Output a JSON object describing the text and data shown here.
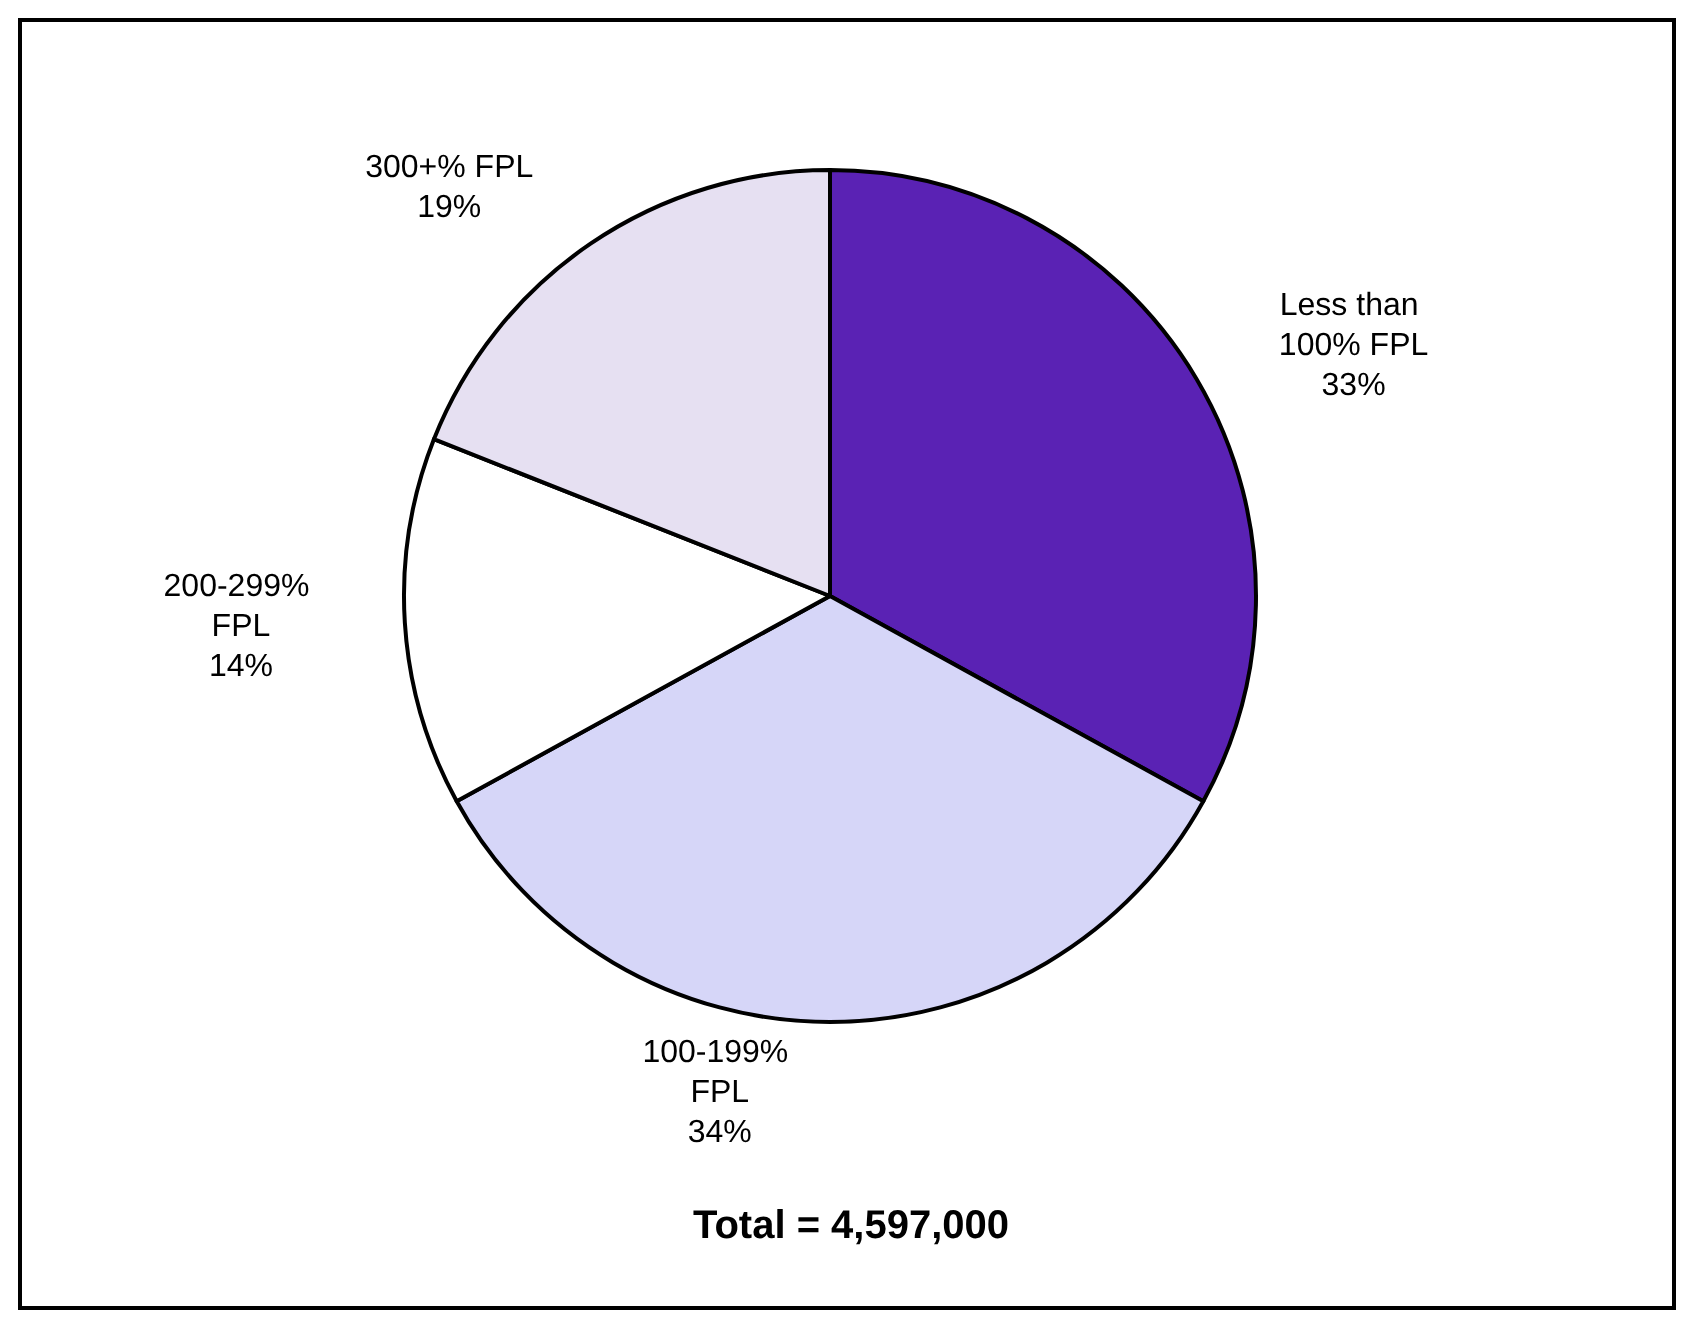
{
  "chart_data": {
    "type": "pie",
    "categories": [
      "Less than 100% FPL",
      "100-199% FPL",
      "200-299% FPL",
      "300+% FPL"
    ],
    "values": [
      33,
      34,
      14,
      19
    ],
    "colors": [
      "#5a22b4",
      "#d6d6f8",
      "#ffffff",
      "#e6e0f2"
    ],
    "value_labels": [
      "33%",
      "34%",
      "14%",
      "19%"
    ],
    "annotations": [
      "Total = 4,597,000"
    ]
  }
}
